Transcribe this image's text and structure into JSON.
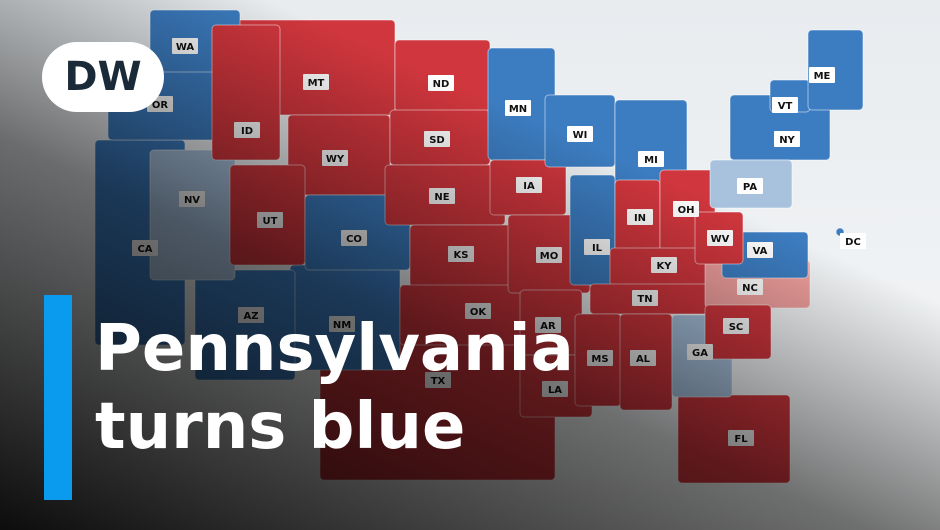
{
  "logo": "DW",
  "headline": [
    "Pennsylvania",
    "turns blue"
  ],
  "states": [
    {
      "label": "TX",
      "color": "#c8333a"
    },
    {
      "label": "CA",
      "color": "#3c7cc0"
    },
    {
      "label": "MT",
      "color": "#d0363d"
    },
    {
      "label": "NM",
      "color": "#3c7cc0"
    },
    {
      "label": "AZ",
      "color": "#3c7cc0"
    },
    {
      "label": "NV",
      "color": "#a8c2de"
    },
    {
      "label": "OR",
      "color": "#3c7cc0"
    },
    {
      "label": "WA",
      "color": "#3c7cc0"
    },
    {
      "label": "ID",
      "color": "#d0363d"
    },
    {
      "label": "WY",
      "color": "#d0363d"
    },
    {
      "label": "UT",
      "color": "#d0363d"
    },
    {
      "label": "CO",
      "color": "#3c7cc0"
    },
    {
      "label": "ND",
      "color": "#d0363d"
    },
    {
      "label": "SD",
      "color": "#d0363d"
    },
    {
      "label": "NE",
      "color": "#d0363d"
    },
    {
      "label": "KS",
      "color": "#d0363d"
    },
    {
      "label": "OK",
      "color": "#d0363d"
    },
    {
      "label": "MN",
      "color": "#3c7cc0"
    },
    {
      "label": "IA",
      "color": "#d0363d"
    },
    {
      "label": "MO",
      "color": "#d0363d"
    },
    {
      "label": "AR",
      "color": "#d0363d"
    },
    {
      "label": "LA",
      "color": "#d0363d"
    },
    {
      "label": "WI",
      "color": "#3c7cc0"
    },
    {
      "label": "MI",
      "color": "#3c7cc0"
    },
    {
      "label": "IL",
      "color": "#3c7cc0"
    },
    {
      "label": "IN",
      "color": "#d0363d"
    },
    {
      "label": "OH",
      "color": "#d0363d"
    },
    {
      "label": "NY",
      "color": "#3c7cc0"
    },
    {
      "label": "VT",
      "color": "#3c7cc0"
    },
    {
      "label": "ME",
      "color": "#3c7cc0"
    },
    {
      "label": "PA",
      "color": "#a8c2de"
    },
    {
      "label": "KY",
      "color": "#d0363d"
    },
    {
      "label": "TN",
      "color": "#d0363d"
    },
    {
      "label": "MS",
      "color": "#d0363d"
    },
    {
      "label": "AL",
      "color": "#d0363d"
    },
    {
      "label": "FL",
      "color": "#d0363d"
    },
    {
      "label": "GA",
      "color": "#a8c2de"
    },
    {
      "label": "NC",
      "color": "#ee9e9c"
    },
    {
      "label": "SC",
      "color": "#d0363d"
    },
    {
      "label": "VA",
      "color": "#3c7cc0"
    },
    {
      "label": "WV",
      "color": "#d0363d"
    },
    {
      "label": "DC",
      "color": "#3c7cc0"
    }
  ]
}
